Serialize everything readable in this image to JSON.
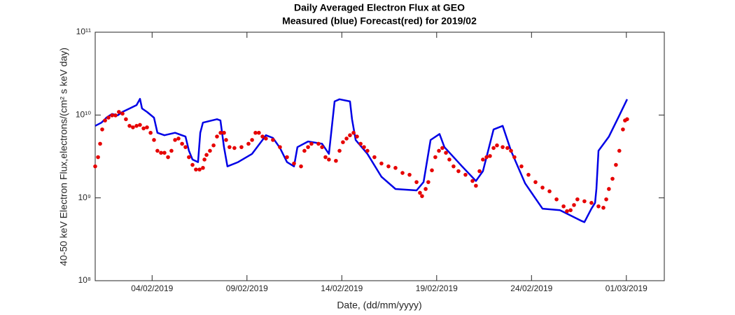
{
  "chart_data": {
    "type": "line",
    "title": "Daily Averaged Electron Flux at GEO",
    "subtitle": "Measured (blue) Forecast(red) for 2019/02",
    "x_label": "Date, (dd/mm/yyyy)",
    "y_label": "40-50 keV Electron Flux,electrons/(cm² s keV day)",
    "xlim": [
      1,
      31
    ],
    "xticks": [
      {
        "value": 4,
        "label": "04/02/2019"
      },
      {
        "value": 9,
        "label": "09/02/2019"
      },
      {
        "value": 14,
        "label": "14/02/2019"
      },
      {
        "value": 19,
        "label": "19/02/2019"
      },
      {
        "value": 24,
        "label": "24/02/2019"
      },
      {
        "value": 29,
        "label": "01/03/2019"
      }
    ],
    "ylim": [
      100000000,
      100000000000
    ],
    "yticks": [
      {
        "value": 100000000,
        "label": "10⁸"
      },
      {
        "value": 1000000000,
        "label": "10⁹"
      },
      {
        "value": 10000000000,
        "label": "10¹⁰"
      },
      {
        "value": 100000000000,
        "label": "10¹¹"
      }
    ],
    "y_scale": "log",
    "grid": false,
    "series": [
      {
        "style": "line",
        "color": "#0000e6",
        "x": [
          1.0,
          1.33,
          1.59,
          1.89,
          2.18,
          2.44,
          2.81,
          3.18,
          3.36,
          3.47,
          3.73,
          4.1,
          4.28,
          4.65,
          5.21,
          5.76,
          5.94,
          6.13,
          6.42,
          6.54,
          6.68,
          7.42,
          7.6,
          7.79,
          7.97,
          8.53,
          9.27,
          9.82,
          10.0,
          10.37,
          10.74,
          11.11,
          11.48,
          11.66,
          12.22,
          12.96,
          13.32,
          13.62,
          13.88,
          14.43,
          14.54,
          14.73,
          15.35,
          16.09,
          16.83,
          17.94,
          18.31,
          18.68,
          19.15,
          19.41,
          20.34,
          21.07,
          21.44,
          22.0,
          22.48,
          22.92,
          23.66,
          24.58,
          25.5,
          26.61,
          26.79,
          27.16,
          27.35,
          27.42,
          27.53,
          28.08,
          28.63,
          29.04
        ],
        "values": [
          7400000000.0,
          8100000000.0,
          9300000000.0,
          10300000000.0,
          9900000000.0,
          10900000000.0,
          12000000000.0,
          13200000000.0,
          15700000000.0,
          12000000000.0,
          10900000000.0,
          9300000000.0,
          6100000000.0,
          5700000000.0,
          6100000000.0,
          5500000000.0,
          3700000000.0,
          2900000000.0,
          2700000000.0,
          6100000000.0,
          8100000000.0,
          8900000000.0,
          8600000000.0,
          4100000000.0,
          2400000000.0,
          2700000000.0,
          3400000000.0,
          5000000000.0,
          5700000000.0,
          5300000000.0,
          4000000000.0,
          2700000000.0,
          2400000000.0,
          4100000000.0,
          4800000000.0,
          4500000000.0,
          3400000000.0,
          14600000000.0,
          15500000000.0,
          14600000000.0,
          8900000000.0,
          5000000000.0,
          3400000000.0,
          1800000000.0,
          1280000000.0,
          1230000000.0,
          1550000000.0,
          5000000000.0,
          5900000000.0,
          4100000000.0,
          2400000000.0,
          1600000000.0,
          2100000000.0,
          6700000000.0,
          7400000000.0,
          3700000000.0,
          1500000000.0,
          740000000.0,
          710000000.0,
          530000000.0,
          510000000.0,
          740000000.0,
          870000000.0,
          1280000000.0,
          3700000000.0,
          5500000000.0,
          9900000000.0,
          15500000000.0
        ]
      },
      {
        "style": "dots",
        "color": "#e60000",
        "x": [
          1.0,
          1.15,
          1.26,
          1.37,
          1.52,
          1.7,
          1.89,
          2.07,
          2.25,
          2.44,
          2.62,
          2.81,
          2.99,
          3.18,
          3.36,
          3.55,
          3.73,
          3.92,
          4.1,
          4.28,
          4.47,
          4.65,
          4.84,
          5.02,
          5.21,
          5.39,
          5.58,
          5.76,
          5.94,
          6.13,
          6.31,
          6.5,
          6.68,
          6.76,
          6.87,
          7.05,
          7.24,
          7.42,
          7.61,
          7.79,
          7.9,
          8.08,
          8.34,
          8.71,
          9.08,
          9.27,
          9.45,
          9.63,
          9.82,
          10.0,
          10.37,
          10.74,
          11.11,
          11.48,
          11.85,
          12.03,
          12.22,
          12.4,
          12.77,
          12.96,
          13.14,
          13.32,
          13.69,
          13.88,
          14.06,
          14.25,
          14.43,
          14.62,
          14.8,
          14.99,
          15.17,
          15.35,
          15.72,
          16.09,
          16.46,
          16.83,
          17.2,
          17.57,
          17.94,
          18.12,
          18.23,
          18.42,
          18.56,
          18.75,
          18.93,
          19.12,
          19.3,
          19.49,
          19.67,
          19.89,
          20.15,
          20.52,
          20.89,
          21.07,
          21.26,
          21.44,
          21.63,
          21.81,
          22.0,
          22.18,
          22.48,
          22.73,
          22.92,
          23.1,
          23.47,
          23.84,
          24.21,
          24.58,
          24.95,
          25.32,
          25.69,
          25.87,
          26.06,
          26.24,
          26.42,
          26.79,
          27.16,
          27.53,
          27.79,
          27.94,
          28.08,
          28.27,
          28.45,
          28.63,
          28.82,
          28.93,
          29.04
        ],
        "values": [
          2400000000.0,
          3100000000.0,
          4500000000.0,
          6700000000.0,
          8600000000.0,
          9300000000.0,
          9900000000.0,
          9900000000.0,
          10900000000.0,
          10400000000.0,
          8900000000.0,
          7400000000.0,
          7100000000.0,
          7400000000.0,
          7600000000.0,
          6900000000.0,
          7100000000.0,
          6100000000.0,
          5000000000.0,
          3700000000.0,
          3500000000.0,
          3500000000.0,
          3100000000.0,
          3700000000.0,
          5000000000.0,
          5200000000.0,
          4500000000.0,
          4100000000.0,
          3100000000.0,
          2500000000.0,
          2200000000.0,
          2200000000.0,
          2300000000.0,
          2900000000.0,
          3300000000.0,
          3700000000.0,
          4300000000.0,
          5500000000.0,
          6100000000.0,
          6100000000.0,
          5000000000.0,
          4100000000.0,
          4000000000.0,
          4100000000.0,
          4500000000.0,
          5000000000.0,
          6100000000.0,
          6100000000.0,
          5500000000.0,
          5200000000.0,
          5000000000.0,
          4100000000.0,
          3100000000.0,
          2600000000.0,
          2400000000.0,
          3700000000.0,
          4100000000.0,
          4500000000.0,
          4500000000.0,
          4100000000.0,
          3100000000.0,
          2900000000.0,
          2800000000.0,
          3700000000.0,
          4700000000.0,
          5200000000.0,
          5700000000.0,
          6100000000.0,
          5500000000.0,
          4500000000.0,
          4100000000.0,
          3700000000.0,
          3100000000.0,
          2600000000.0,
          2400000000.0,
          2300000000.0,
          2000000000.0,
          1900000000.0,
          1550000000.0,
          1150000000.0,
          1050000000.0,
          1280000000.0,
          1550000000.0,
          2150000000.0,
          3100000000.0,
          3700000000.0,
          4000000000.0,
          3500000000.0,
          2900000000.0,
          2400000000.0,
          2100000000.0,
          1900000000.0,
          1600000000.0,
          1400000000.0,
          2100000000.0,
          2900000000.0,
          3100000000.0,
          3200000000.0,
          4000000000.0,
          4300000000.0,
          4100000000.0,
          4000000000.0,
          3700000000.0,
          3100000000.0,
          2400000000.0,
          1900000000.0,
          1550000000.0,
          1330000000.0,
          1200000000.0,
          960000000.0,
          790000000.0,
          690000000.0,
          710000000.0,
          820000000.0,
          960000000.0,
          910000000.0,
          870000000.0,
          790000000.0,
          760000000.0,
          960000000.0,
          1280000000.0,
          1700000000.0,
          2500000000.0,
          3700000000.0,
          6700000000.0,
          8600000000.0,
          8900000000.0
        ]
      }
    ]
  }
}
